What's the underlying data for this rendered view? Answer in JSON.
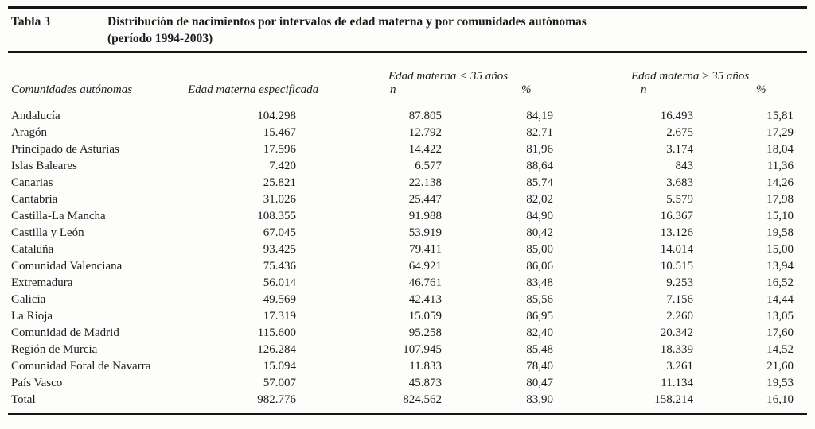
{
  "table": {
    "label": "Tabla 3",
    "title": "Distribución de nacimientos por intervalos de edad materna y por comunidades autónomas",
    "subtitle": "(período 1994-2003)",
    "group_lt35": "Edad materna < 35 años",
    "group_ge35": "Edad materna ≥ 35 años",
    "col_region": "Comunidades autónomas",
    "col_especificada": "Edad materna especificada",
    "col_n": "n",
    "col_pct": "%",
    "rows": [
      {
        "region": "Andalucía",
        "especificada": "104.298",
        "n_lt35": "87.805",
        "pct_lt35": "84,19",
        "n_ge35": "16.493",
        "pct_ge35": "15,81"
      },
      {
        "region": "Aragón",
        "especificada": "15.467",
        "n_lt35": "12.792",
        "pct_lt35": "82,71",
        "n_ge35": "2.675",
        "pct_ge35": "17,29"
      },
      {
        "region": "Principado de Asturias",
        "especificada": "17.596",
        "n_lt35": "14.422",
        "pct_lt35": "81,96",
        "n_ge35": "3.174",
        "pct_ge35": "18,04"
      },
      {
        "region": "Islas Baleares",
        "especificada": "7.420",
        "n_lt35": "6.577",
        "pct_lt35": "88,64",
        "n_ge35": "843",
        "pct_ge35": "11,36"
      },
      {
        "region": "Canarias",
        "especificada": "25.821",
        "n_lt35": "22.138",
        "pct_lt35": "85,74",
        "n_ge35": "3.683",
        "pct_ge35": "14,26"
      },
      {
        "region": "Cantabria",
        "especificada": "31.026",
        "n_lt35": "25.447",
        "pct_lt35": "82,02",
        "n_ge35": "5.579",
        "pct_ge35": "17,98"
      },
      {
        "region": "Castilla-La Mancha",
        "especificada": "108.355",
        "n_lt35": "91.988",
        "pct_lt35": "84,90",
        "n_ge35": "16.367",
        "pct_ge35": "15,10"
      },
      {
        "region": "Castilla y León",
        "especificada": "67.045",
        "n_lt35": "53.919",
        "pct_lt35": "80,42",
        "n_ge35": "13.126",
        "pct_ge35": "19,58"
      },
      {
        "region": "Cataluña",
        "especificada": "93.425",
        "n_lt35": "79.411",
        "pct_lt35": "85,00",
        "n_ge35": "14.014",
        "pct_ge35": "15,00"
      },
      {
        "region": "Comunidad Valenciana",
        "especificada": "75.436",
        "n_lt35": "64.921",
        "pct_lt35": "86,06",
        "n_ge35": "10.515",
        "pct_ge35": "13,94"
      },
      {
        "region": "Extremadura",
        "especificada": "56.014",
        "n_lt35": "46.761",
        "pct_lt35": "83,48",
        "n_ge35": "9.253",
        "pct_ge35": "16,52"
      },
      {
        "region": "Galicia",
        "especificada": "49.569",
        "n_lt35": "42.413",
        "pct_lt35": "85,56",
        "n_ge35": "7.156",
        "pct_ge35": "14,44"
      },
      {
        "region": "La Rioja",
        "especificada": "17.319",
        "n_lt35": "15.059",
        "pct_lt35": "86,95",
        "n_ge35": "2.260",
        "pct_ge35": "13,05"
      },
      {
        "region": "Comunidad de Madrid",
        "especificada": "115.600",
        "n_lt35": "95.258",
        "pct_lt35": "82,40",
        "n_ge35": "20.342",
        "pct_ge35": "17,60"
      },
      {
        "region": "Región de Murcia",
        "especificada": "126.284",
        "n_lt35": "107.945",
        "pct_lt35": "85,48",
        "n_ge35": "18.339",
        "pct_ge35": "14,52"
      },
      {
        "region": "Comunidad Foral de Navarra",
        "especificada": "15.094",
        "n_lt35": "11.833",
        "pct_lt35": "78,40",
        "n_ge35": "3.261",
        "pct_ge35": "21,60"
      },
      {
        "region": "País Vasco",
        "especificada": "57.007",
        "n_lt35": "45.873",
        "pct_lt35": "80,47",
        "n_ge35": "11.134",
        "pct_ge35": "19,53"
      },
      {
        "region": "Total",
        "especificada": "982.776",
        "n_lt35": "824.562",
        "pct_lt35": "83,90",
        "n_ge35": "158.214",
        "pct_ge35": "16,10"
      }
    ]
  }
}
